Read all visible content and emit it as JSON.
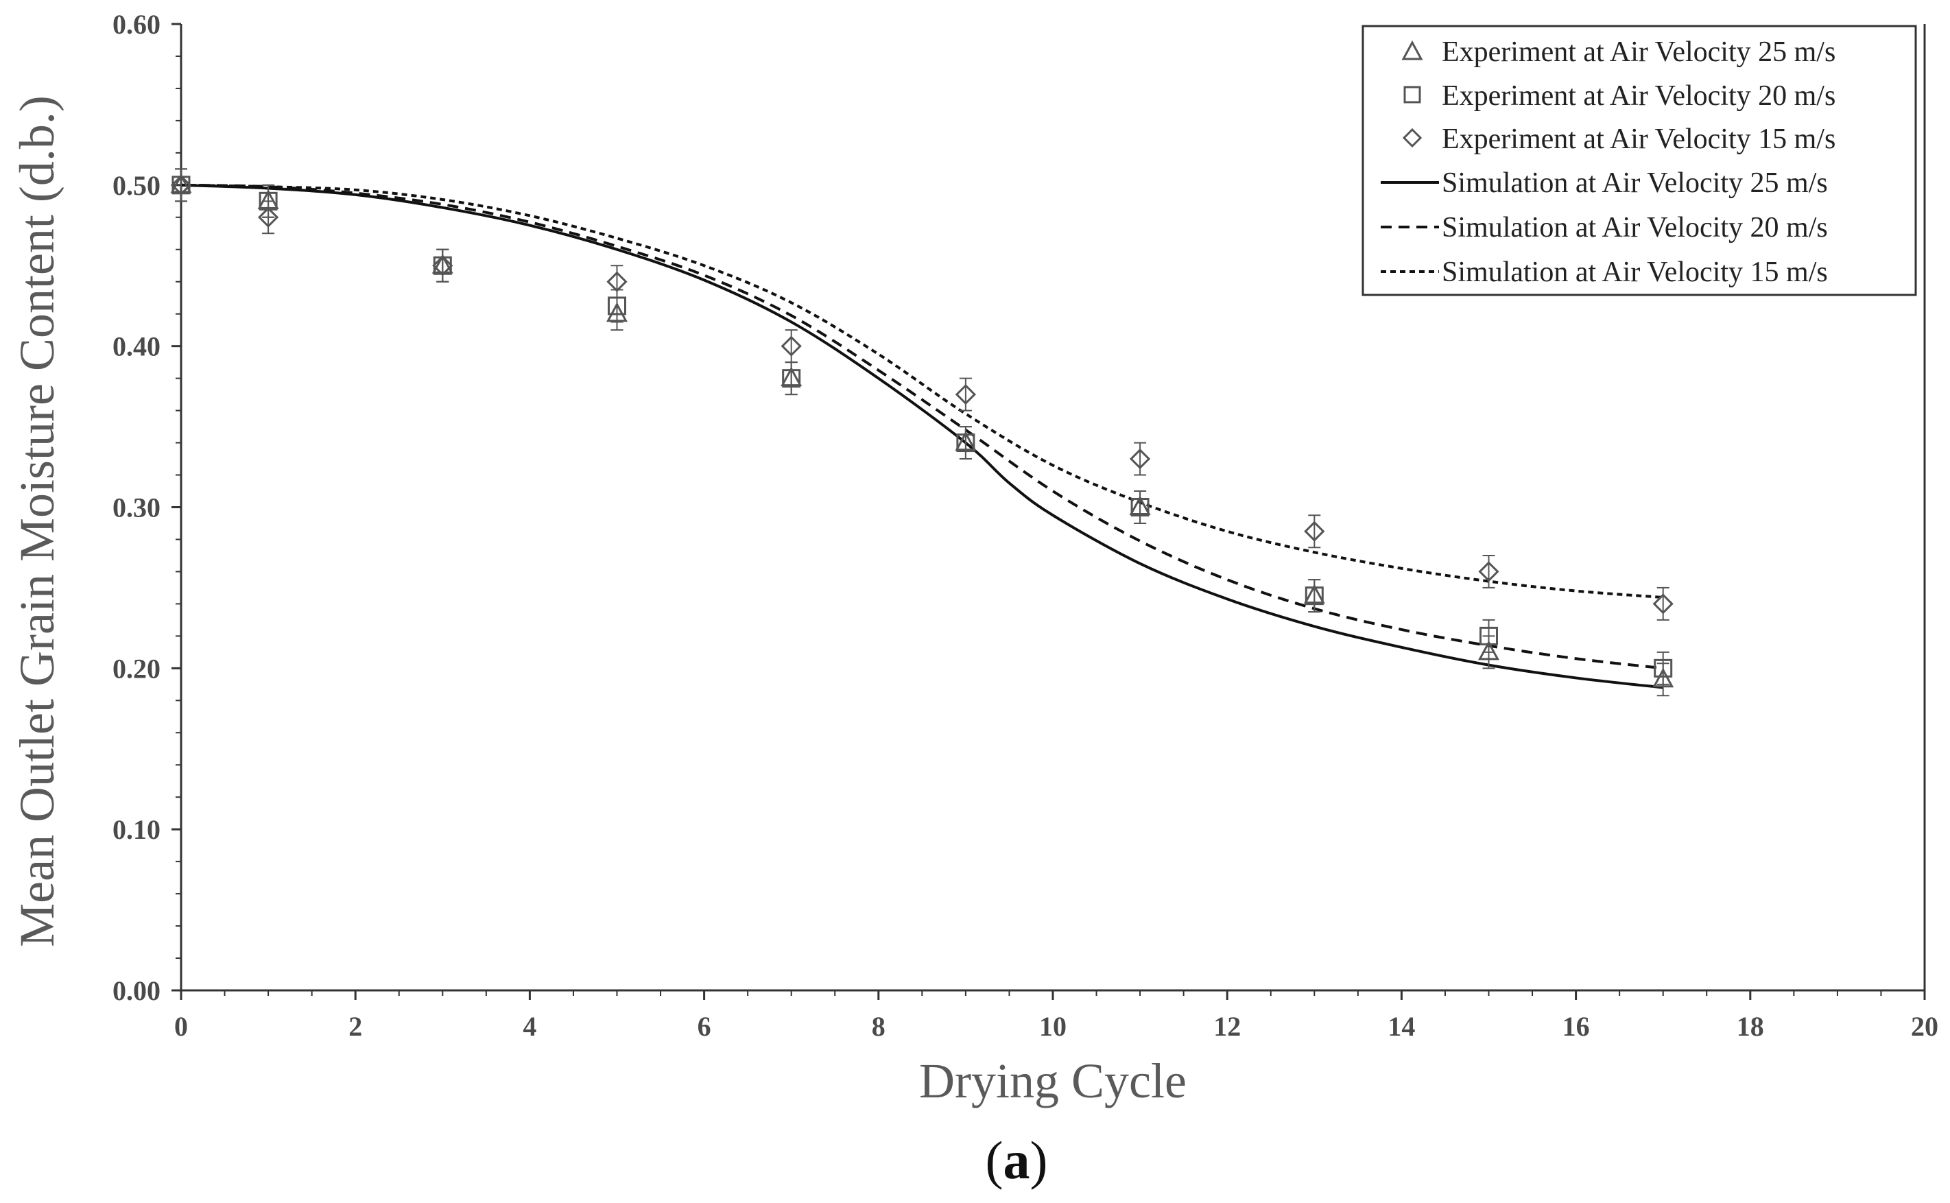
{
  "chart_data": {
    "type": "line",
    "title": "",
    "xlabel": "Drying Cycle",
    "ylabel": "Mean Outlet Grain Moisture Content (d.b.)",
    "panel_label_prefix": "(",
    "panel_label_letter": "a",
    "panel_label_suffix": ")",
    "xlim": [
      0,
      20
    ],
    "ylim": [
      0,
      0.6
    ],
    "x_ticks": [
      0,
      2,
      4,
      6,
      8,
      10,
      12,
      14,
      16,
      18,
      20
    ],
    "x_tick_labels": [
      "0",
      "2",
      "4",
      "6",
      "8",
      "10",
      "12",
      "14",
      "16",
      "18",
      "20"
    ],
    "y_ticks": [
      0,
      0.1,
      0.2,
      0.3,
      0.4,
      0.5,
      0.6
    ],
    "y_tick_labels": [
      "0.00",
      "0.10",
      "0.20",
      "0.30",
      "0.40",
      "0.50",
      "0.60"
    ],
    "grid": false,
    "legend_position": "top-right",
    "experiment_series": [
      {
        "name": "Experiment at Air Velocity 25 m/s",
        "marker": "triangle",
        "x": [
          0,
          1,
          3,
          5,
          7,
          9,
          11,
          13,
          15,
          17
        ],
        "y": [
          0.5,
          0.49,
          0.45,
          0.42,
          0.38,
          0.34,
          0.3,
          0.245,
          0.21,
          0.193
        ],
        "error": 0.01
      },
      {
        "name": "Experiment at Air Velocity 20 m/s",
        "marker": "square",
        "x": [
          0,
          1,
          3,
          5,
          7,
          9,
          11,
          13,
          15,
          17
        ],
        "y": [
          0.5,
          0.49,
          0.45,
          0.425,
          0.38,
          0.34,
          0.3,
          0.245,
          0.22,
          0.2
        ],
        "error": 0.01
      },
      {
        "name": "Experiment at Air Velocity 15 m/s",
        "marker": "diamond",
        "x": [
          0,
          1,
          3,
          5,
          7,
          9,
          11,
          13,
          15,
          17
        ],
        "y": [
          0.5,
          0.48,
          0.45,
          0.44,
          0.4,
          0.37,
          0.33,
          0.285,
          0.26,
          0.24
        ],
        "error": 0.01
      }
    ],
    "simulation_series": [
      {
        "name": "Simulation at Air Velocity 25 m/s",
        "dash": "solid",
        "x": [
          0,
          1,
          2,
          3,
          4,
          5,
          6,
          7,
          8,
          9,
          9.5,
          10,
          11,
          12,
          13,
          14,
          15,
          16,
          17
        ],
        "y": [
          0.5,
          0.498,
          0.494,
          0.486,
          0.475,
          0.46,
          0.441,
          0.415,
          0.38,
          0.34,
          0.315,
          0.295,
          0.265,
          0.243,
          0.226,
          0.213,
          0.202,
          0.194,
          0.188
        ]
      },
      {
        "name": "Simulation at Air Velocity 20 m/s",
        "dash": "dashed",
        "x": [
          0,
          1,
          2,
          3,
          4,
          5,
          6,
          7,
          8,
          9,
          10,
          11,
          12,
          13,
          14,
          15,
          16,
          17
        ],
        "y": [
          0.5,
          0.499,
          0.495,
          0.488,
          0.477,
          0.462,
          0.444,
          0.419,
          0.385,
          0.348,
          0.31,
          0.279,
          0.255,
          0.237,
          0.224,
          0.214,
          0.206,
          0.2
        ]
      },
      {
        "name": "Simulation at Air Velocity 15 m/s",
        "dash": "dotted",
        "x": [
          0,
          1,
          2,
          3,
          4,
          5,
          6,
          7,
          8,
          9,
          10,
          11,
          12,
          13,
          14,
          15,
          16,
          17
        ],
        "y": [
          0.5,
          0.499,
          0.497,
          0.491,
          0.481,
          0.467,
          0.45,
          0.427,
          0.395,
          0.358,
          0.326,
          0.303,
          0.285,
          0.272,
          0.262,
          0.254,
          0.248,
          0.244
        ]
      }
    ]
  },
  "colors": {
    "ink": "#222222",
    "axis": "#333333",
    "tick_text": "#4a4a4a",
    "axis_title": "#5a5a5a",
    "marker": "#555555"
  }
}
